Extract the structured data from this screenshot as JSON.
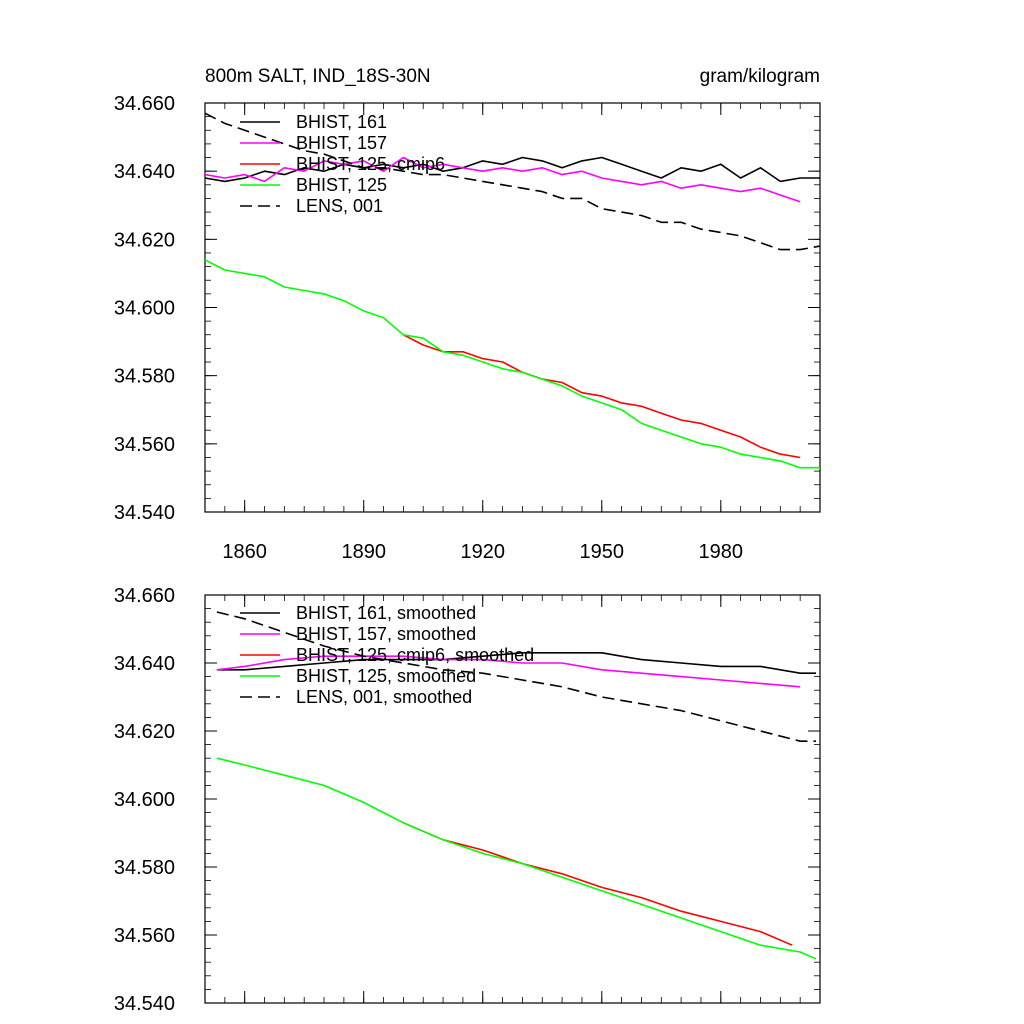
{
  "chart_data": [
    {
      "type": "line",
      "title": "800m SALT, IND_18S-30N",
      "units": "gram/kilogram",
      "xlabel": "",
      "ylabel": "",
      "xlim": [
        1850,
        2005
      ],
      "ylim": [
        34.54,
        34.66
      ],
      "xticks": [
        1860,
        1890,
        1920,
        1950,
        1980
      ],
      "xtick_labels": [
        "1860",
        "1890",
        "1920",
        "1950",
        "1980"
      ],
      "yticks": [
        34.54,
        34.56,
        34.58,
        34.6,
        34.62,
        34.64,
        34.66
      ],
      "ytick_labels": [
        "34.540",
        "34.560",
        "34.580",
        "34.600",
        "34.620",
        "34.640",
        "34.660"
      ],
      "grid": false,
      "legend_position": "top-left",
      "series": [
        {
          "name": "BHIST, 161",
          "color": "#000000",
          "dash": "solid",
          "x": [
            1850,
            1855,
            1860,
            1865,
            1870,
            1875,
            1880,
            1885,
            1890,
            1895,
            1900,
            1905,
            1910,
            1915,
            1920,
            1925,
            1930,
            1935,
            1940,
            1945,
            1950,
            1955,
            1960,
            1965,
            1970,
            1975,
            1980,
            1985,
            1990,
            1995,
            2000,
            2005
          ],
          "y": [
            34.638,
            34.637,
            34.638,
            34.64,
            34.639,
            34.641,
            34.64,
            34.642,
            34.641,
            34.642,
            34.641,
            34.642,
            34.64,
            34.641,
            34.643,
            34.642,
            34.644,
            34.643,
            34.641,
            34.643,
            34.644,
            34.642,
            34.64,
            34.638,
            34.641,
            34.64,
            34.642,
            34.638,
            34.641,
            34.637,
            34.638,
            34.638
          ]
        },
        {
          "name": "BHIST, 157",
          "color": "#ff00ff",
          "dash": "solid",
          "x": [
            1850,
            1855,
            1860,
            1865,
            1870,
            1875,
            1880,
            1885,
            1890,
            1895,
            1900,
            1905,
            1910,
            1915,
            1920,
            1925,
            1930,
            1935,
            1940,
            1945,
            1950,
            1955,
            1960,
            1965,
            1970,
            1975,
            1980,
            1985,
            1990,
            1995,
            2000
          ],
          "y": [
            34.639,
            34.638,
            34.639,
            34.637,
            34.641,
            34.64,
            34.643,
            34.642,
            34.643,
            34.64,
            34.644,
            34.641,
            34.642,
            34.641,
            34.64,
            34.641,
            34.64,
            34.641,
            34.639,
            34.64,
            34.638,
            34.637,
            34.636,
            34.637,
            34.635,
            34.636,
            34.635,
            34.634,
            34.635,
            34.633,
            34.631
          ]
        },
        {
          "name": "BHIST, 125, cmip6",
          "color": "#ff0000",
          "dash": "solid",
          "x": [
            1900,
            1905,
            1910,
            1915,
            1920,
            1925,
            1930,
            1935,
            1940,
            1945,
            1950,
            1955,
            1960,
            1965,
            1970,
            1975,
            1980,
            1985,
            1990,
            1995,
            2000
          ],
          "y": [
            34.592,
            34.589,
            34.587,
            34.587,
            34.585,
            34.584,
            34.581,
            34.579,
            34.578,
            34.575,
            34.574,
            34.572,
            34.571,
            34.569,
            34.567,
            34.566,
            34.564,
            34.562,
            34.559,
            34.557,
            34.556
          ]
        },
        {
          "name": "BHIST, 125",
          "color": "#00ff00",
          "dash": "solid",
          "x": [
            1850,
            1855,
            1860,
            1865,
            1870,
            1875,
            1880,
            1885,
            1890,
            1895,
            1900,
            1905,
            1910,
            1915,
            1920,
            1925,
            1930,
            1935,
            1940,
            1945,
            1950,
            1955,
            1960,
            1965,
            1970,
            1975,
            1980,
            1985,
            1990,
            1995,
            2000,
            2005
          ],
          "y": [
            34.614,
            34.611,
            34.61,
            34.609,
            34.606,
            34.605,
            34.604,
            34.602,
            34.599,
            34.597,
            34.592,
            34.591,
            34.587,
            34.586,
            34.584,
            34.582,
            34.581,
            34.579,
            34.577,
            34.574,
            34.572,
            34.57,
            34.566,
            34.564,
            34.562,
            34.56,
            34.559,
            34.557,
            34.556,
            34.555,
            34.553,
            34.553
          ]
        },
        {
          "name": "LENS, 001",
          "color": "#000000",
          "dash": "dashed",
          "x": [
            1850,
            1855,
            1860,
            1865,
            1870,
            1875,
            1880,
            1885,
            1890,
            1895,
            1900,
            1905,
            1910,
            1915,
            1920,
            1925,
            1930,
            1935,
            1940,
            1945,
            1950,
            1955,
            1960,
            1965,
            1970,
            1975,
            1980,
            1985,
            1990,
            1995,
            2000,
            2005
          ],
          "y": [
            34.657,
            34.654,
            34.652,
            34.65,
            34.648,
            34.646,
            34.645,
            34.643,
            34.641,
            34.641,
            34.64,
            34.639,
            34.639,
            34.638,
            34.637,
            34.636,
            34.635,
            34.634,
            34.632,
            34.632,
            34.629,
            34.628,
            34.627,
            34.625,
            34.625,
            34.623,
            34.622,
            34.621,
            34.619,
            34.617,
            34.617,
            34.618
          ]
        }
      ],
      "legend": [
        "BHIST, 161",
        "BHIST, 157",
        "BHIST, 125, cmip6",
        "BHIST, 125",
        "LENS, 001"
      ]
    },
    {
      "type": "line",
      "title": "",
      "xlabel": "",
      "ylabel": "",
      "xlim": [
        1850,
        2005
      ],
      "ylim": [
        34.54,
        34.66
      ],
      "xticks": [
        1860,
        1890,
        1920,
        1950,
        1980
      ],
      "xtick_labels": [],
      "yticks": [
        34.54,
        34.56,
        34.58,
        34.6,
        34.62,
        34.64,
        34.66
      ],
      "ytick_labels": [
        "34.540",
        "34.560",
        "34.580",
        "34.600",
        "34.620",
        "34.640",
        "34.660"
      ],
      "grid": false,
      "legend_position": "top-left",
      "series": [
        {
          "name": "BHIST, 161, smoothed",
          "color": "#000000",
          "dash": "solid",
          "x": [
            1853,
            1860,
            1870,
            1880,
            1890,
            1900,
            1910,
            1920,
            1930,
            1940,
            1950,
            1960,
            1970,
            1980,
            1990,
            2000,
            2004
          ],
          "y": [
            34.638,
            34.638,
            34.639,
            34.64,
            34.641,
            34.641,
            34.641,
            34.642,
            34.643,
            34.643,
            34.643,
            34.641,
            34.64,
            34.639,
            34.639,
            34.637,
            34.637
          ]
        },
        {
          "name": "BHIST, 157, smoothed",
          "color": "#ff00ff",
          "dash": "solid",
          "x": [
            1853,
            1860,
            1870,
            1880,
            1890,
            1900,
            1910,
            1920,
            1930,
            1940,
            1950,
            1960,
            1970,
            1980,
            1990,
            2000
          ],
          "y": [
            34.638,
            34.639,
            34.641,
            34.642,
            34.642,
            34.642,
            34.641,
            34.641,
            34.64,
            34.64,
            34.638,
            34.637,
            34.636,
            34.635,
            34.634,
            34.633
          ]
        },
        {
          "name": "BHIST, 125, cmip6, smoothed",
          "color": "#ff0000",
          "dash": "solid",
          "x": [
            1900,
            1910,
            1920,
            1930,
            1940,
            1950,
            1960,
            1970,
            1980,
            1990,
            1998
          ],
          "y": [
            34.593,
            34.588,
            34.585,
            34.581,
            34.578,
            34.574,
            34.571,
            34.567,
            34.564,
            34.561,
            34.557
          ]
        },
        {
          "name": "BHIST, 125, smoothed",
          "color": "#00ff00",
          "dash": "solid",
          "x": [
            1853,
            1860,
            1870,
            1880,
            1890,
            1900,
            1910,
            1920,
            1930,
            1940,
            1950,
            1960,
            1970,
            1980,
            1990,
            2000,
            2004
          ],
          "y": [
            34.612,
            34.61,
            34.607,
            34.604,
            34.599,
            34.593,
            34.588,
            34.584,
            34.581,
            34.577,
            34.573,
            34.569,
            34.565,
            34.561,
            34.557,
            34.555,
            34.553
          ]
        },
        {
          "name": "LENS, 001, smoothed",
          "color": "#000000",
          "dash": "dashed",
          "x": [
            1853,
            1860,
            1870,
            1880,
            1890,
            1900,
            1910,
            1920,
            1930,
            1940,
            1950,
            1960,
            1970,
            1980,
            1990,
            2000,
            2004
          ],
          "y": [
            34.655,
            34.653,
            34.649,
            34.645,
            34.642,
            34.64,
            34.638,
            34.637,
            34.635,
            34.633,
            34.63,
            34.628,
            34.626,
            34.623,
            34.62,
            34.617,
            34.617
          ]
        }
      ],
      "legend": [
        "BHIST, 161, smoothed",
        "BHIST, 157, smoothed",
        "BHIST, 125, cmip6, smoothed",
        "BHIST, 125, smoothed",
        "LENS, 001, smoothed"
      ]
    }
  ]
}
